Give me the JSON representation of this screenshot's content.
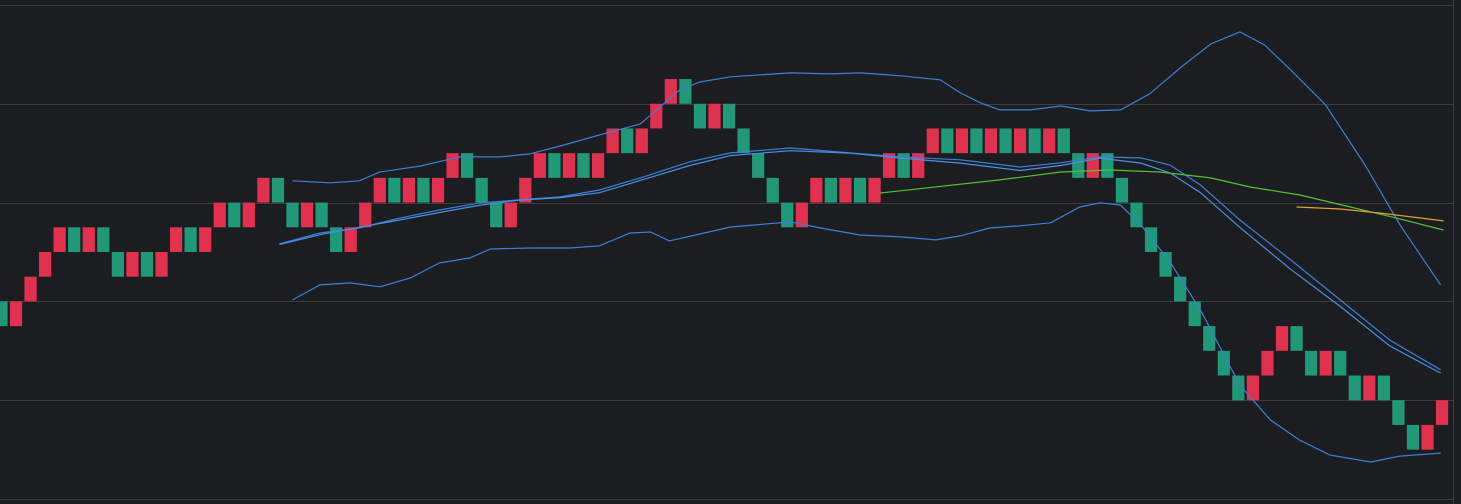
{
  "chart_data": {
    "type": "renko",
    "up_color": "#e2304f",
    "down_color": "#1f9978",
    "background": "#1c1d21",
    "grid": true,
    "grid_color": "#3b3c41",
    "xlim": [
      -0.1,
      100.3
    ],
    "ylim": [
      -0.2,
      20.2
    ],
    "yticks": [
      0,
      4,
      8,
      12,
      16,
      20
    ],
    "x": [
      0,
      1,
      2,
      3,
      4,
      5,
      6,
      7,
      8,
      9,
      10,
      11,
      12,
      13,
      14,
      15,
      16,
      17,
      18,
      19,
      20,
      21,
      22,
      23,
      24,
      25,
      26,
      27,
      28,
      29,
      30,
      31,
      32,
      33,
      34,
      35,
      36,
      37,
      38,
      39,
      40,
      41,
      42,
      43,
      44,
      45,
      46,
      47,
      48,
      49,
      50,
      51,
      52,
      53,
      54,
      55,
      56,
      57,
      58,
      59,
      60,
      61,
      62,
      63,
      64,
      65,
      66,
      67,
      68,
      69,
      70,
      71,
      72,
      73,
      74,
      75,
      76,
      77,
      78,
      79,
      80,
      81,
      82,
      83,
      84,
      85,
      86,
      87,
      88,
      89,
      90,
      91,
      92,
      93,
      94,
      95,
      96,
      97,
      98,
      99
    ],
    "open": [
      8,
      7,
      8,
      9,
      10,
      11,
      10,
      11,
      10,
      9,
      10,
      9,
      10,
      11,
      10,
      11,
      12,
      11,
      12,
      13,
      12,
      11,
      12,
      11,
      10,
      11,
      12,
      13,
      12,
      13,
      12,
      13,
      14,
      13,
      12,
      11,
      12,
      13,
      14,
      13,
      14,
      13,
      14,
      15,
      14,
      15,
      16,
      17,
      16,
      15,
      16,
      15,
      14,
      13,
      12,
      11,
      12,
      13,
      12,
      13,
      12,
      13,
      14,
      13,
      14,
      15,
      14,
      15,
      14,
      15,
      14,
      15,
      14,
      15,
      14,
      13,
      14,
      13,
      12,
      11,
      10,
      9,
      8,
      7,
      6,
      5,
      4,
      5,
      6,
      7,
      6,
      5,
      6,
      5,
      4,
      5,
      4,
      3,
      2,
      3
    ],
    "close": [
      7,
      8,
      9,
      10,
      11,
      10,
      11,
      10,
      9,
      10,
      9,
      10,
      11,
      10,
      11,
      12,
      11,
      12,
      13,
      12,
      11,
      12,
      11,
      10,
      11,
      12,
      13,
      12,
      13,
      12,
      13,
      14,
      13,
      12,
      11,
      12,
      13,
      14,
      13,
      14,
      13,
      14,
      15,
      14,
      15,
      16,
      17,
      16,
      15,
      16,
      15,
      14,
      13,
      12,
      11,
      12,
      13,
      12,
      13,
      12,
      13,
      14,
      13,
      14,
      15,
      14,
      15,
      14,
      15,
      14,
      15,
      14,
      15,
      14,
      13,
      14,
      13,
      12,
      11,
      10,
      9,
      8,
      7,
      6,
      5,
      4,
      5,
      6,
      7,
      6,
      5,
      6,
      5,
      4,
      5,
      4,
      3,
      2,
      3,
      4
    ],
    "lines": [
      {
        "color": "#3d7fd6",
        "x": [
          20.0,
          22.6,
          24.6,
          26.0,
          28.8,
          31.5,
          34.3,
          36.3,
          38.4,
          41.1,
          43.9,
          46.6,
          48.0,
          50.1,
          54.2,
          56.9,
          59.0,
          61.8,
          64.5,
          65.9,
          67.3,
          68.6,
          70.7,
          72.8,
          74.8,
          76.9,
          78.9,
          81.0,
          83.1,
          85.1,
          86.8,
          88.6,
          91.0,
          93.7,
          96.1,
          98.9
        ],
        "values": [
          12.88,
          12.8,
          12.88,
          13.24,
          13.48,
          13.85,
          13.85,
          13.97,
          14.29,
          14.74,
          15.18,
          16.56,
          16.88,
          17.09,
          17.25,
          17.21,
          17.25,
          17.13,
          16.97,
          16.44,
          16.03,
          15.75,
          15.75,
          15.91,
          15.71,
          15.75,
          16.4,
          17.45,
          18.42,
          18.91,
          18.38,
          17.37,
          15.95,
          13.52,
          11.1,
          8.67
        ]
      },
      {
        "color": "#3d7fd6",
        "x": [
          20.0,
          21.9,
          23.96,
          26.0,
          28.1,
          30.1,
          32.2,
          33.6,
          36.3,
          39.1,
          41.1,
          43.2,
          44.6,
          45.9,
          48.0,
          50.1,
          54.2,
          56.3,
          59.0,
          61.8,
          64.2,
          65.9,
          67.9,
          70.0,
          72.1,
          74.1,
          75.5,
          76.9,
          78.3,
          80.3,
          82.4,
          85.1,
          87.2,
          89.2,
          91.3,
          94.1,
          96.1,
          98.9
        ],
        "values": [
          8.06,
          8.67,
          8.75,
          8.59,
          8.95,
          9.56,
          9.76,
          10.12,
          10.16,
          10.16,
          10.25,
          10.77,
          10.81,
          10.45,
          10.73,
          11.01,
          11.22,
          10.97,
          10.69,
          10.61,
          10.49,
          10.65,
          10.97,
          11.06,
          11.18,
          11.82,
          11.99,
          11.9,
          11.1,
          9.6,
          7.65,
          4.62,
          3.2,
          2.39,
          1.78,
          1.5,
          1.74,
          1.86
        ]
      },
      {
        "color": "#3d7fd6",
        "x": [
          19.1,
          21.9,
          24.6,
          27.4,
          30.1,
          32.9,
          35.6,
          38.4,
          41.1,
          43.9,
          47.3,
          50.1,
          54.2,
          58.3,
          61.8,
          65.9,
          70.0,
          72.8,
          75.5,
          78.3,
          80.3,
          82.4,
          85.1,
          88.6,
          92.0,
          95.4,
          98.9
        ],
        "values": [
          10.33,
          10.77,
          10.97,
          11.38,
          11.7,
          11.99,
          12.11,
          12.23,
          12.51,
          13.0,
          13.65,
          14.01,
          14.21,
          14.01,
          13.85,
          13.73,
          13.44,
          13.61,
          13.85,
          13.81,
          13.52,
          12.71,
          11.3,
          9.68,
          8.06,
          6.44,
          5.23
        ]
      },
      {
        "color": "#4a8fe6",
        "x": [
          19.1,
          21.9,
          24.6,
          27.4,
          30.1,
          32.9,
          35.6,
          38.4,
          41.1,
          43.9,
          47.3,
          50.1,
          54.2,
          58.3,
          61.8,
          65.9,
          70.0,
          72.8,
          75.5,
          78.3,
          80.3,
          82.4,
          85.1,
          88.6,
          92.0,
          95.4,
          98.9
        ],
        "values": [
          10.3,
          10.7,
          11.0,
          11.3,
          11.6,
          11.9,
          12.1,
          12.2,
          12.4,
          12.9,
          13.5,
          13.9,
          14.1,
          14.0,
          13.8,
          13.6,
          13.3,
          13.5,
          13.8,
          13.6,
          13.2,
          12.4,
          11.0,
          9.3,
          7.8,
          6.2,
          5.1
        ]
      },
      {
        "color": "#52c234",
        "x": [
          60.4,
          68.6,
          72.8,
          76.2,
          79.6,
          83.1,
          85.8,
          89.2,
          92.7,
          96.1,
          99.1
        ],
        "values": [
          12.39,
          12.92,
          13.24,
          13.32,
          13.24,
          13.0,
          12.63,
          12.31,
          11.82,
          11.34,
          10.89
        ]
      },
      {
        "color": "#e0a030",
        "x": [
          89.0,
          92.0,
          94.7,
          99.1
        ],
        "values": [
          11.82,
          11.74,
          11.58,
          11.26
        ]
      }
    ]
  }
}
